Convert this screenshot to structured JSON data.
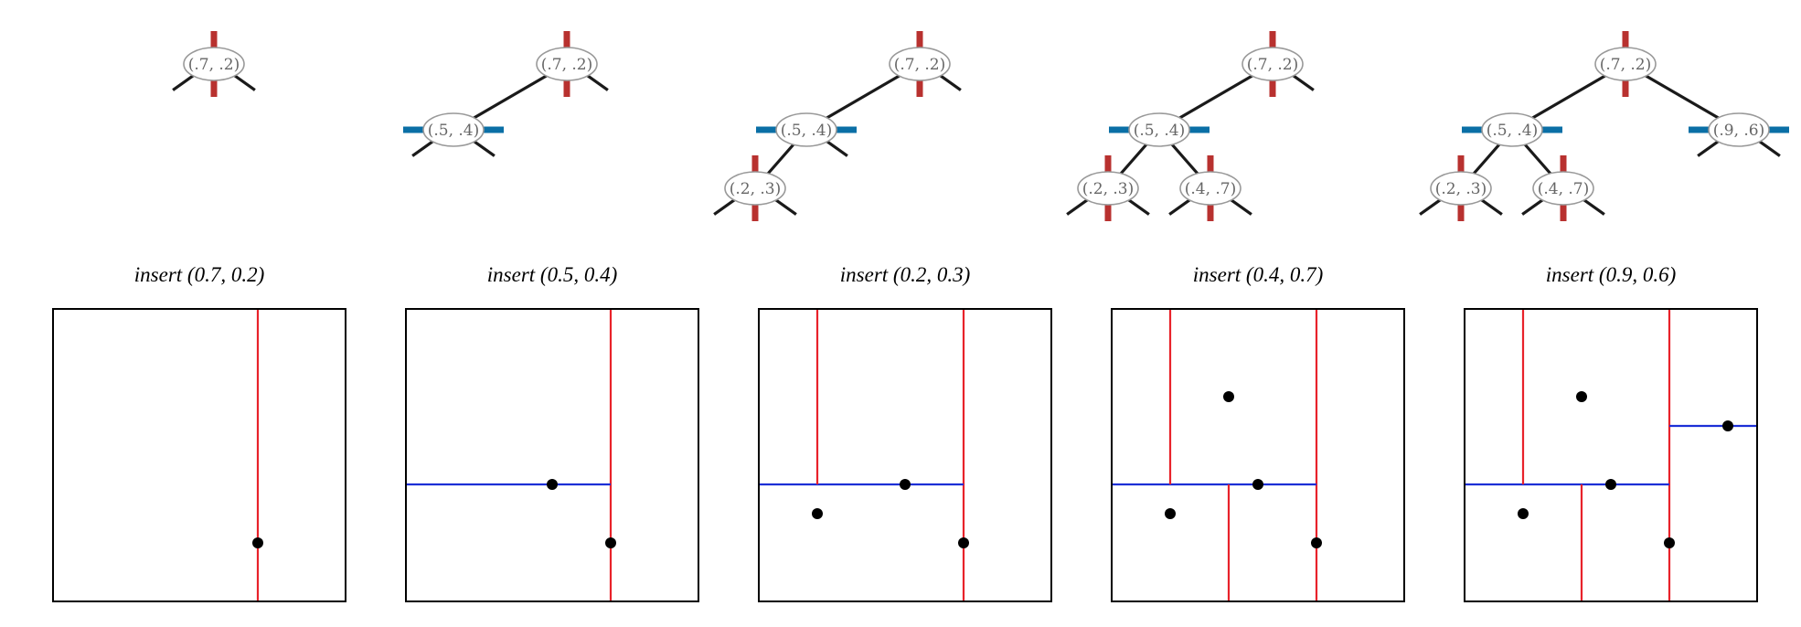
{
  "colors": {
    "vertical_split": "#e8222a",
    "horizontal_split": "#1c2fd6",
    "tree_vertical_marker": "#b8312f",
    "tree_horizontal_marker": "#0a6fa6",
    "edge": "#1a1a1a",
    "node_border": "#999999",
    "node_fill": "#ffffff",
    "point": "#000000"
  },
  "steps": [
    {
      "caption": "insert (0.7, 0.2)",
      "tree": [
        {
          "label": "(.7, .2)",
          "point": [
            0.7,
            0.2
          ],
          "split": "vertical",
          "parent": -1
        }
      ]
    },
    {
      "caption": "insert (0.5, 0.4)",
      "tree": [
        {
          "label": "(.7, .2)",
          "point": [
            0.7,
            0.2
          ],
          "split": "vertical",
          "parent": -1
        },
        {
          "label": "(.5, .4)",
          "point": [
            0.5,
            0.4
          ],
          "split": "horizontal",
          "parent": 0,
          "side": "left"
        }
      ]
    },
    {
      "caption": "insert (0.2, 0.3)",
      "tree": [
        {
          "label": "(.7, .2)",
          "point": [
            0.7,
            0.2
          ],
          "split": "vertical",
          "parent": -1
        },
        {
          "label": "(.5, .4)",
          "point": [
            0.5,
            0.4
          ],
          "split": "horizontal",
          "parent": 0,
          "side": "left"
        },
        {
          "label": "(.2, .3)",
          "point": [
            0.2,
            0.3
          ],
          "split": "vertical",
          "parent": 1,
          "side": "left"
        }
      ]
    },
    {
      "caption": "insert (0.4, 0.7)",
      "tree": [
        {
          "label": "(.7, .2)",
          "point": [
            0.7,
            0.2
          ],
          "split": "vertical",
          "parent": -1
        },
        {
          "label": "(.5, .4)",
          "point": [
            0.5,
            0.4
          ],
          "split": "horizontal",
          "parent": 0,
          "side": "left"
        },
        {
          "label": "(.2, .3)",
          "point": [
            0.2,
            0.3
          ],
          "split": "vertical",
          "parent": 1,
          "side": "left"
        },
        {
          "label": "(.4, .7)",
          "point": [
            0.4,
            0.7
          ],
          "split": "vertical",
          "parent": 1,
          "side": "right"
        }
      ]
    },
    {
      "caption": "insert (0.9, 0.6)",
      "tree": [
        {
          "label": "(.7, .2)",
          "point": [
            0.7,
            0.2
          ],
          "split": "vertical",
          "parent": -1
        },
        {
          "label": "(.5, .4)",
          "point": [
            0.5,
            0.4
          ],
          "split": "horizontal",
          "parent": 0,
          "side": "left"
        },
        {
          "label": "(.2, .3)",
          "point": [
            0.2,
            0.3
          ],
          "split": "vertical",
          "parent": 1,
          "side": "left"
        },
        {
          "label": "(.4, .7)",
          "point": [
            0.4,
            0.7
          ],
          "split": "vertical",
          "parent": 1,
          "side": "right"
        },
        {
          "label": "(.9, .6)",
          "point": [
            0.9,
            0.6
          ],
          "split": "horizontal",
          "parent": 0,
          "side": "right"
        }
      ]
    }
  ]
}
